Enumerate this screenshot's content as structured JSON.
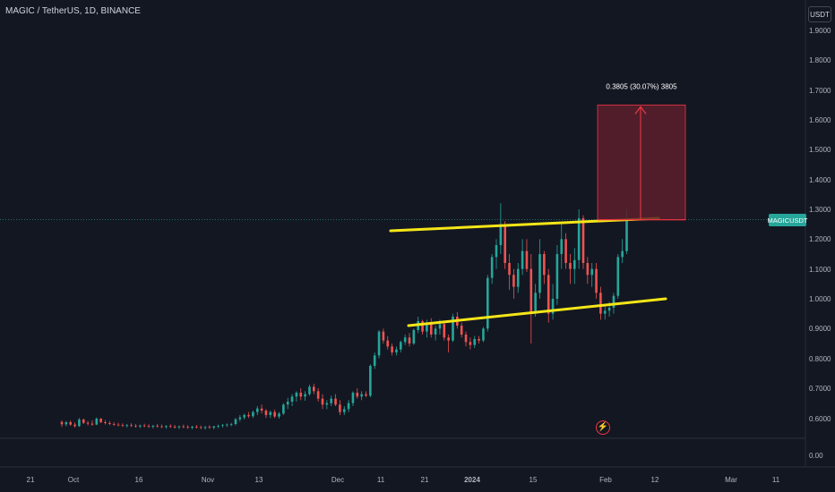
{
  "header": {
    "title": "MAGIC / TetherUS, 1D, BINANCE",
    "currency": "USDT"
  },
  "symbol_label": "MAGICUSDT",
  "colors": {
    "background": "#131722",
    "up": "#26a69a",
    "down": "#ef5350",
    "trendline": "#f5e617",
    "projection_fill": "#5d1f2b",
    "projection_stroke": "#f23645"
  },
  "icons": {
    "flash": "lightning-bolt-icon"
  },
  "chart_data": {
    "type": "candlestick",
    "title": "MAGIC / TetherUS, 1D, BINANCE",
    "y_axis": {
      "ticks": [
        "1.9000",
        "1.8000",
        "1.7000",
        "1.6000",
        "1.5000",
        "1.4000",
        "1.3000",
        "1.2000",
        "1.1000",
        "1.0000",
        "0.9000",
        "0.8000",
        "0.7000",
        "0.6000",
        "0.00"
      ]
    },
    "x_axis": {
      "ticks": [
        "21",
        "Oct",
        "16",
        "Nov",
        "13",
        "Dec",
        "11",
        "21",
        "2024",
        "15",
        "Feb",
        "12",
        "Mar",
        "11"
      ]
    },
    "last_price": 1.265,
    "annotation": {
      "label": "0.3805 (30.07%) 3805",
      "from_price": 1.265,
      "to_price": 1.65
    },
    "trendlines": [
      {
        "name": "upper",
        "start": [
          1.228
        ],
        "end": [
          1.27
        ]
      },
      {
        "name": "lower",
        "start": [
          0.91
        ],
        "end": [
          1.0
        ]
      }
    ],
    "candles": [
      [
        0.587,
        0.592,
        0.57,
        0.579
      ],
      [
        0.579,
        0.59,
        0.572,
        0.586
      ],
      [
        0.586,
        0.592,
        0.574,
        0.578
      ],
      [
        0.578,
        0.585,
        0.568,
        0.573
      ],
      [
        0.573,
        0.6,
        0.57,
        0.595
      ],
      [
        0.595,
        0.598,
        0.58,
        0.584
      ],
      [
        0.584,
        0.59,
        0.575,
        0.581
      ],
      [
        0.581,
        0.592,
        0.574,
        0.578
      ],
      [
        0.578,
        0.602,
        0.576,
        0.598
      ],
      [
        0.598,
        0.6,
        0.583,
        0.586
      ],
      [
        0.586,
        0.593,
        0.578,
        0.583
      ],
      [
        0.583,
        0.59,
        0.576,
        0.58
      ],
      [
        0.58,
        0.586,
        0.574,
        0.578
      ],
      [
        0.578,
        0.584,
        0.572,
        0.576
      ],
      [
        0.576,
        0.582,
        0.57,
        0.574
      ],
      [
        0.574,
        0.58,
        0.568,
        0.576
      ],
      [
        0.576,
        0.582,
        0.57,
        0.574
      ],
      [
        0.574,
        0.58,
        0.568,
        0.572
      ],
      [
        0.572,
        0.578,
        0.566,
        0.575
      ],
      [
        0.575,
        0.581,
        0.569,
        0.573
      ],
      [
        0.573,
        0.579,
        0.567,
        0.571
      ],
      [
        0.571,
        0.577,
        0.565,
        0.574
      ],
      [
        0.574,
        0.58,
        0.568,
        0.572
      ],
      [
        0.572,
        0.578,
        0.566,
        0.57
      ],
      [
        0.57,
        0.576,
        0.564,
        0.573
      ],
      [
        0.573,
        0.579,
        0.567,
        0.571
      ],
      [
        0.571,
        0.577,
        0.565,
        0.569
      ],
      [
        0.569,
        0.575,
        0.563,
        0.572
      ],
      [
        0.572,
        0.578,
        0.566,
        0.57
      ],
      [
        0.57,
        0.576,
        0.564,
        0.568
      ],
      [
        0.568,
        0.574,
        0.562,
        0.571
      ],
      [
        0.571,
        0.577,
        0.565,
        0.569
      ],
      [
        0.569,
        0.575,
        0.563,
        0.567
      ],
      [
        0.567,
        0.573,
        0.561,
        0.57
      ],
      [
        0.57,
        0.576,
        0.564,
        0.568
      ],
      [
        0.568,
        0.574,
        0.562,
        0.572
      ],
      [
        0.572,
        0.578,
        0.566,
        0.574
      ],
      [
        0.574,
        0.58,
        0.568,
        0.576
      ],
      [
        0.576,
        0.582,
        0.57,
        0.578
      ],
      [
        0.578,
        0.584,
        0.572,
        0.58
      ],
      [
        0.58,
        0.6,
        0.575,
        0.596
      ],
      [
        0.596,
        0.61,
        0.588,
        0.602
      ],
      [
        0.602,
        0.615,
        0.595,
        0.61
      ],
      [
        0.61,
        0.62,
        0.6,
        0.606
      ],
      [
        0.606,
        0.625,
        0.6,
        0.62
      ],
      [
        0.62,
        0.64,
        0.61,
        0.632
      ],
      [
        0.632,
        0.645,
        0.615,
        0.625
      ],
      [
        0.625,
        0.63,
        0.6,
        0.61
      ],
      [
        0.61,
        0.625,
        0.6,
        0.62
      ],
      [
        0.62,
        0.628,
        0.6,
        0.605
      ],
      [
        0.605,
        0.62,
        0.598,
        0.615
      ],
      [
        0.615,
        0.65,
        0.61,
        0.645
      ],
      [
        0.645,
        0.668,
        0.63,
        0.655
      ],
      [
        0.655,
        0.68,
        0.64,
        0.672
      ],
      [
        0.672,
        0.69,
        0.655,
        0.685
      ],
      [
        0.685,
        0.7,
        0.66,
        0.672
      ],
      [
        0.672,
        0.69,
        0.658,
        0.68
      ],
      [
        0.68,
        0.712,
        0.675,
        0.705
      ],
      [
        0.705,
        0.715,
        0.68,
        0.69
      ],
      [
        0.69,
        0.7,
        0.655,
        0.665
      ],
      [
        0.665,
        0.68,
        0.63,
        0.645
      ],
      [
        0.645,
        0.66,
        0.63,
        0.65
      ],
      [
        0.65,
        0.675,
        0.64,
        0.665
      ],
      [
        0.665,
        0.68,
        0.64,
        0.645
      ],
      [
        0.645,
        0.66,
        0.61,
        0.62
      ],
      [
        0.62,
        0.64,
        0.61,
        0.63
      ],
      [
        0.63,
        0.66,
        0.62,
        0.65
      ],
      [
        0.65,
        0.69,
        0.64,
        0.685
      ],
      [
        0.685,
        0.7,
        0.665,
        0.672
      ],
      [
        0.672,
        0.69,
        0.66,
        0.68
      ],
      [
        0.68,
        0.69,
        0.67,
        0.675
      ],
      [
        0.675,
        0.78,
        0.67,
        0.775
      ],
      [
        0.775,
        0.82,
        0.765,
        0.81
      ],
      [
        0.81,
        0.895,
        0.8,
        0.89
      ],
      [
        0.89,
        0.9,
        0.85,
        0.86
      ],
      [
        0.86,
        0.875,
        0.83,
        0.84
      ],
      [
        0.84,
        0.85,
        0.81,
        0.82
      ],
      [
        0.82,
        0.84,
        0.81,
        0.83
      ],
      [
        0.83,
        0.86,
        0.82,
        0.855
      ],
      [
        0.855,
        0.88,
        0.845,
        0.87
      ],
      [
        0.87,
        0.885,
        0.84,
        0.85
      ],
      [
        0.85,
        0.9,
        0.845,
        0.895
      ],
      [
        0.895,
        0.94,
        0.885,
        0.925
      ],
      [
        0.925,
        0.93,
        0.88,
        0.89
      ],
      [
        0.89,
        0.93,
        0.87,
        0.92
      ],
      [
        0.92,
        0.935,
        0.87,
        0.88
      ],
      [
        0.88,
        0.91,
        0.86,
        0.9
      ],
      [
        0.9,
        0.93,
        0.88,
        0.915
      ],
      [
        0.915,
        0.925,
        0.86,
        0.87
      ],
      [
        0.87,
        0.88,
        0.82,
        0.86
      ],
      [
        0.86,
        0.95,
        0.855,
        0.94
      ],
      [
        0.94,
        0.955,
        0.9,
        0.91
      ],
      [
        0.91,
        0.92,
        0.87,
        0.88
      ],
      [
        0.88,
        0.89,
        0.84,
        0.855
      ],
      [
        0.855,
        0.87,
        0.83,
        0.845
      ],
      [
        0.845,
        0.875,
        0.835,
        0.865
      ],
      [
        0.865,
        0.875,
        0.85,
        0.86
      ],
      [
        0.86,
        0.905,
        0.855,
        0.9
      ],
      [
        0.9,
        1.08,
        0.89,
        1.07
      ],
      [
        1.07,
        1.15,
        1.05,
        1.14
      ],
      [
        1.14,
        1.2,
        1.1,
        1.18
      ],
      [
        1.18,
        1.32,
        1.15,
        1.25
      ],
      [
        1.25,
        1.26,
        1.1,
        1.12
      ],
      [
        1.12,
        1.15,
        1.03,
        1.08
      ],
      [
        1.08,
        1.1,
        1.0,
        1.04
      ],
      [
        1.04,
        1.12,
        1.02,
        1.1
      ],
      [
        1.1,
        1.2,
        1.08,
        1.16
      ],
      [
        1.16,
        1.2,
        1.09,
        1.1
      ],
      [
        1.1,
        1.15,
        0.85,
        0.95
      ],
      [
        0.95,
        1.05,
        0.94,
        1.02
      ],
      [
        1.02,
        1.2,
        1.0,
        1.15
      ],
      [
        1.15,
        1.16,
        1.05,
        1.08
      ],
      [
        1.08,
        1.1,
        0.92,
        0.95
      ],
      [
        0.95,
        1.05,
        0.93,
        1.0
      ],
      [
        1.0,
        1.18,
        0.98,
        1.15
      ],
      [
        1.15,
        1.25,
        1.1,
        1.2
      ],
      [
        1.2,
        1.22,
        1.1,
        1.12
      ],
      [
        1.12,
        1.15,
        1.05,
        1.1
      ],
      [
        1.1,
        1.17,
        1.05,
        1.13
      ],
      [
        1.13,
        1.3,
        1.1,
        1.27
      ],
      [
        1.27,
        1.28,
        1.1,
        1.12
      ],
      [
        1.12,
        1.14,
        1.05,
        1.08
      ],
      [
        1.08,
        1.12,
        1.04,
        1.1
      ],
      [
        1.1,
        1.12,
        1.0,
        1.02
      ],
      [
        1.02,
        1.04,
        0.93,
        0.95
      ],
      [
        0.95,
        0.98,
        0.93,
        0.96
      ],
      [
        0.96,
        0.99,
        0.94,
        0.97
      ],
      [
        0.97,
        1.02,
        0.95,
        1.01
      ],
      [
        1.01,
        1.15,
        1.0,
        1.14
      ],
      [
        1.14,
        1.2,
        1.12,
        1.16
      ],
      [
        1.16,
        1.3,
        1.15,
        1.27
      ]
    ]
  }
}
